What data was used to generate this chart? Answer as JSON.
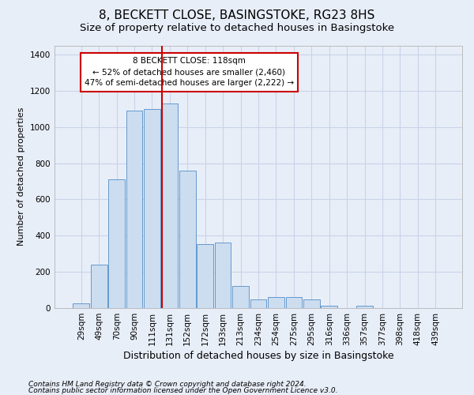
{
  "title": "8, BECKETT CLOSE, BASINGSTOKE, RG23 8HS",
  "subtitle": "Size of property relative to detached houses in Basingstoke",
  "xlabel": "Distribution of detached houses by size in Basingstoke",
  "ylabel": "Number of detached properties",
  "categories": [
    "29sqm",
    "49sqm",
    "70sqm",
    "90sqm",
    "111sqm",
    "131sqm",
    "152sqm",
    "172sqm",
    "193sqm",
    "213sqm",
    "234sqm",
    "254sqm",
    "275sqm",
    "295sqm",
    "316sqm",
    "336sqm",
    "357sqm",
    "377sqm",
    "398sqm",
    "418sqm",
    "439sqm"
  ],
  "values": [
    28,
    240,
    710,
    1090,
    1100,
    1130,
    760,
    355,
    360,
    120,
    50,
    60,
    60,
    50,
    15,
    0,
    15,
    0,
    0,
    0,
    0
  ],
  "bar_color": "#ccddf0",
  "bar_edge_color": "#6699cc",
  "bg_color": "#e8eef8",
  "grid_color": "#c8d4e8",
  "property_line_x": 4.55,
  "property_line_color": "#cc0000",
  "annotation_text": "8 BECKETT CLOSE: 118sqm\n← 52% of detached houses are smaller (2,460)\n47% of semi-detached houses are larger (2,222) →",
  "annotation_box_color": "#cc0000",
  "ylim": [
    0,
    1450
  ],
  "yticks": [
    0,
    200,
    400,
    600,
    800,
    1000,
    1200,
    1400
  ],
  "footer1": "Contains HM Land Registry data © Crown copyright and database right 2024.",
  "footer2": "Contains public sector information licensed under the Open Government Licence v3.0.",
  "title_fontsize": 11,
  "subtitle_fontsize": 9.5,
  "xlabel_fontsize": 9,
  "ylabel_fontsize": 8,
  "tick_fontsize": 7.5,
  "annot_fontsize": 7.5,
  "footer_fontsize": 6.5
}
